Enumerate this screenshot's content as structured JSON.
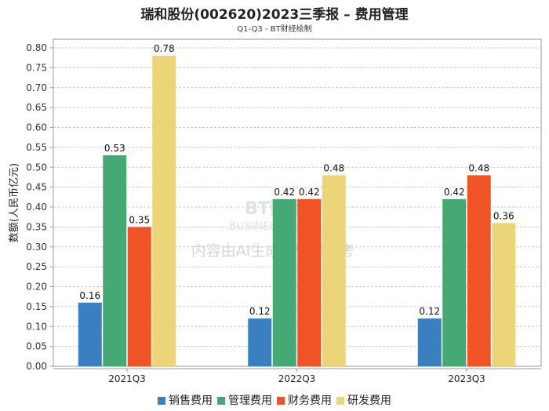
{
  "chart_data": {
    "type": "bar",
    "title": "瑞和股份(002620)2023三季报 – 费用管理",
    "subtitle": "Q1-Q3 - BT财经绘制",
    "xlabel": "",
    "ylabel": "数额(人民币亿元)",
    "ylim": [
      0,
      0.8
    ],
    "yticks": [
      "0.00",
      "0.05",
      "0.10",
      "0.15",
      "0.20",
      "0.25",
      "0.30",
      "0.35",
      "0.40",
      "0.45",
      "0.50",
      "0.55",
      "0.60",
      "0.65",
      "0.70",
      "0.75",
      "0.80"
    ],
    "categories": [
      "2021Q3",
      "2022Q3",
      "2023Q3"
    ],
    "series": [
      {
        "name": "销售费用",
        "color": "#3a80c0",
        "values": [
          0.16,
          0.12,
          0.12
        ]
      },
      {
        "name": "管理费用",
        "color": "#46a874",
        "values": [
          0.53,
          0.42,
          0.42
        ]
      },
      {
        "name": "财务费用",
        "color": "#f05326",
        "values": [
          0.35,
          0.42,
          0.48
        ]
      },
      {
        "name": "研发费用",
        "color": "#ecd578",
        "values": [
          0.78,
          0.48,
          0.36
        ]
      }
    ],
    "grid": true,
    "legend": "bottom"
  },
  "watermark": {
    "logo": "BT财经 BUSINESS TIMES",
    "notice": "内容由AI生成，仅供参考"
  }
}
